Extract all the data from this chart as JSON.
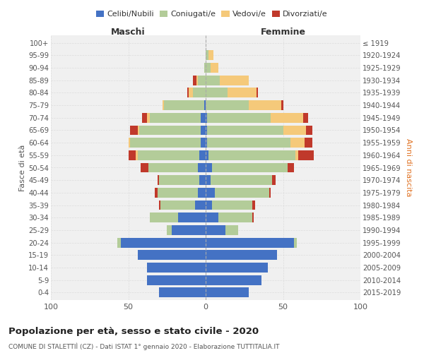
{
  "age_groups": [
    "0-4",
    "5-9",
    "10-14",
    "15-19",
    "20-24",
    "25-29",
    "30-34",
    "35-39",
    "40-44",
    "45-49",
    "50-54",
    "55-59",
    "60-64",
    "65-69",
    "70-74",
    "75-79",
    "80-84",
    "85-89",
    "90-94",
    "95-99",
    "100+"
  ],
  "birth_years": [
    "2015-2019",
    "2010-2014",
    "2005-2009",
    "2000-2004",
    "1995-1999",
    "1990-1994",
    "1985-1989",
    "1980-1984",
    "1975-1979",
    "1970-1974",
    "1965-1969",
    "1960-1964",
    "1955-1959",
    "1950-1954",
    "1945-1949",
    "1940-1944",
    "1935-1939",
    "1930-1934",
    "1925-1929",
    "1920-1924",
    "≤ 1919"
  ],
  "colors": {
    "celibe": "#4472c4",
    "coniugato": "#b3cc99",
    "vedovo": "#f5c97a",
    "divorziato": "#c0392b"
  },
  "maschi": {
    "celibe": [
      30,
      38,
      38,
      44,
      55,
      22,
      18,
      7,
      5,
      4,
      5,
      4,
      3,
      3,
      3,
      1,
      0,
      0,
      0,
      0,
      0
    ],
    "coniugato": [
      0,
      0,
      0,
      0,
      2,
      3,
      18,
      22,
      26,
      26,
      32,
      40,
      46,
      40,
      33,
      26,
      8,
      5,
      1,
      0,
      0
    ],
    "vedovo": [
      0,
      0,
      0,
      0,
      0,
      0,
      0,
      0,
      0,
      0,
      0,
      1,
      1,
      1,
      2,
      1,
      3,
      1,
      0,
      0,
      0
    ],
    "divorziato": [
      0,
      0,
      0,
      0,
      0,
      0,
      0,
      1,
      2,
      1,
      5,
      5,
      0,
      5,
      3,
      0,
      1,
      2,
      0,
      0,
      0
    ]
  },
  "femmine": {
    "nubile": [
      28,
      36,
      40,
      46,
      57,
      13,
      8,
      4,
      6,
      3,
      4,
      2,
      1,
      1,
      1,
      0,
      0,
      0,
      0,
      0,
      0
    ],
    "coniugata": [
      0,
      0,
      0,
      0,
      2,
      8,
      22,
      26,
      35,
      40,
      49,
      56,
      54,
      49,
      41,
      28,
      14,
      9,
      3,
      2,
      0
    ],
    "vedova": [
      0,
      0,
      0,
      0,
      0,
      0,
      0,
      0,
      0,
      0,
      0,
      2,
      9,
      15,
      21,
      21,
      19,
      19,
      5,
      3,
      0
    ],
    "divorziata": [
      0,
      0,
      0,
      0,
      0,
      0,
      1,
      2,
      1,
      2,
      4,
      10,
      5,
      4,
      3,
      1,
      1,
      0,
      0,
      0,
      0
    ]
  },
  "title": "Popolazione per età, sesso e stato civile - 2020",
  "subtitle": "COMUNE DI STALETTIÌ (CZ) - Dati ISTAT 1° gennaio 2020 - Elaborazione TUTTITALIA.IT",
  "xlabel_left": "Maschi",
  "xlabel_right": "Femmine",
  "ylabel_left": "Fasce di età",
  "ylabel_right": "Anni di nascita",
  "xlim": 100,
  "legend_labels": [
    "Celibi/Nubili",
    "Coniugati/e",
    "Vedovi/e",
    "Divorziati/e"
  ],
  "bg_color": "#ffffff",
  "grid_color": "#cccccc"
}
